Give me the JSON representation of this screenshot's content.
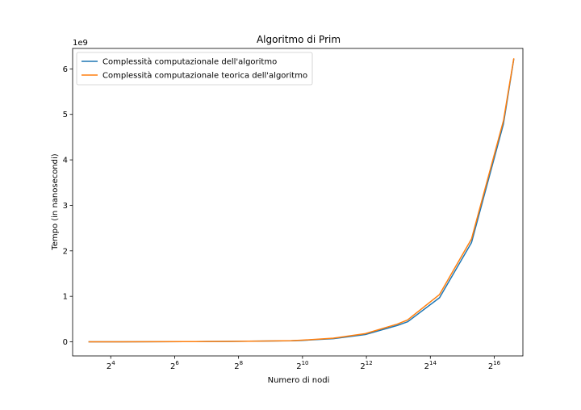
{
  "chart_data": {
    "type": "line",
    "title": "Algoritmo di Prim",
    "xlabel": "Numero di nodi",
    "ylabel": "Tempo (in nanosecondi)",
    "x_scale": "log2",
    "y_offset_label": "1e9",
    "xlim": [
      7,
      122000
    ],
    "ylim": [
      -0.31,
      6.45
    ],
    "x_ticks": [
      {
        "value": 16,
        "base": "2",
        "exp": "4"
      },
      {
        "value": 64,
        "base": "2",
        "exp": "6"
      },
      {
        "value": 256,
        "base": "2",
        "exp": "8"
      },
      {
        "value": 1024,
        "base": "2",
        "exp": "10"
      },
      {
        "value": 4096,
        "base": "2",
        "exp": "12"
      },
      {
        "value": 16384,
        "base": "2",
        "exp": "14"
      },
      {
        "value": 65536,
        "base": "2",
        "exp": "16"
      }
    ],
    "y_ticks": [
      0,
      1,
      2,
      3,
      4,
      5,
      6
    ],
    "y_tick_labels": [
      "0",
      "1",
      "2",
      "3",
      "4",
      "5",
      "6"
    ],
    "grid": false,
    "legend_position": "top-left",
    "x": [
      10,
      20,
      40,
      80,
      100,
      200,
      400,
      800,
      1000,
      2000,
      4000,
      8000,
      10000,
      20000,
      40000,
      80000,
      100000
    ],
    "series": [
      {
        "name": "Complessità computazionale dell'algoritmo",
        "color": "#1f77b4",
        "values": [
          0.0,
          0.001,
          0.002,
          0.004,
          0.005,
          0.01,
          0.015,
          0.022,
          0.03,
          0.07,
          0.16,
          0.36,
          0.44,
          0.97,
          2.18,
          4.79,
          6.21
        ]
      },
      {
        "name": "Complessità computazionale teorica dell'algoritmo",
        "color": "#ff7f0e",
        "values": [
          0.0,
          0.001,
          0.002,
          0.004,
          0.005,
          0.01,
          0.016,
          0.025,
          0.035,
          0.08,
          0.18,
          0.39,
          0.48,
          1.04,
          2.26,
          4.86,
          6.22
        ]
      }
    ]
  }
}
